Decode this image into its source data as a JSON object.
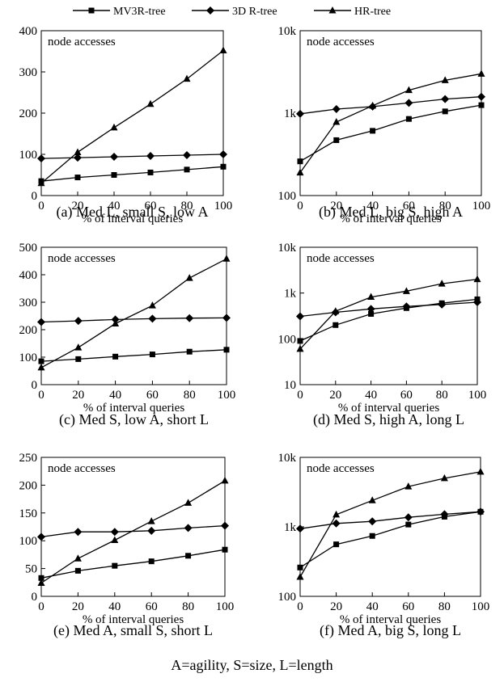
{
  "legend": {
    "series": [
      {
        "name": "MV3R-tree",
        "marker": "square"
      },
      {
        "name": "3D R-tree",
        "marker": "diamond"
      },
      {
        "name": "HR-tree",
        "marker": "triangle"
      }
    ]
  },
  "footer": "A=agility, S=size, L=length",
  "chart_data": [
    {
      "type": "line",
      "caption": "(a) Med L, small S, low A",
      "label": "node accesses",
      "xlabel": "% of interval queries",
      "scale": "linear",
      "x": [
        0,
        20,
        40,
        60,
        80,
        100
      ],
      "xticks": [
        0,
        20,
        40,
        60,
        80,
        100
      ],
      "ylim": [
        0,
        400
      ],
      "yticks": [
        0,
        100,
        200,
        300,
        400
      ],
      "ytick_labels": [
        "0",
        "100",
        "200",
        "300",
        "400"
      ],
      "series": [
        {
          "name": "MV3R-tree",
          "marker": "square",
          "values": [
            35,
            44,
            50,
            56,
            63,
            70
          ]
        },
        {
          "name": "3D R-tree",
          "marker": "diamond",
          "values": [
            90,
            92,
            94,
            96,
            98,
            100
          ]
        },
        {
          "name": "HR-tree",
          "marker": "triangle",
          "values": [
            30,
            105,
            165,
            222,
            283,
            352
          ]
        }
      ]
    },
    {
      "type": "line",
      "caption": "(b) Med L, big S, high A",
      "label": "node accesses",
      "xlabel": "% of interval queries",
      "scale": "log",
      "x": [
        0,
        20,
        40,
        60,
        80,
        100
      ],
      "xticks": [
        0,
        20,
        40,
        60,
        80,
        100
      ],
      "ylim": [
        100,
        10000
      ],
      "yticks": [
        100,
        1000,
        10000
      ],
      "ytick_labels": [
        "100",
        "1k",
        "10k"
      ],
      "series": [
        {
          "name": "MV3R-tree",
          "marker": "square",
          "values": [
            260,
            470,
            610,
            850,
            1050,
            1250
          ]
        },
        {
          "name": "3D R-tree",
          "marker": "diamond",
          "values": [
            980,
            1120,
            1200,
            1330,
            1480,
            1580
          ]
        },
        {
          "name": "HR-tree",
          "marker": "triangle",
          "values": [
            190,
            780,
            1230,
            1900,
            2500,
            3000
          ]
        }
      ]
    },
    {
      "type": "line",
      "caption": "(c) Med S, low A, short L",
      "label": "node accesses",
      "xlabel": "% of interval queries",
      "scale": "linear",
      "x": [
        0,
        20,
        40,
        60,
        80,
        100
      ],
      "xticks": [
        0,
        20,
        40,
        60,
        80,
        100
      ],
      "ylim": [
        0,
        500
      ],
      "yticks": [
        0,
        100,
        200,
        300,
        400,
        500
      ],
      "ytick_labels": [
        "0",
        "100",
        "200",
        "300",
        "400",
        "500"
      ],
      "series": [
        {
          "name": "MV3R-tree",
          "marker": "square",
          "values": [
            85,
            93,
            102,
            110,
            120,
            127
          ]
        },
        {
          "name": "3D R-tree",
          "marker": "diamond",
          "values": [
            228,
            232,
            237,
            240,
            242,
            243
          ]
        },
        {
          "name": "HR-tree",
          "marker": "triangle",
          "values": [
            62,
            135,
            222,
            288,
            388,
            458
          ]
        }
      ]
    },
    {
      "type": "line",
      "caption": "(d) Med S, high A, long L",
      "label": "node accesses",
      "xlabel": "% of interval queries",
      "scale": "log",
      "x": [
        0,
        20,
        40,
        60,
        80,
        100
      ],
      "xticks": [
        0,
        20,
        40,
        60,
        80,
        100
      ],
      "ylim": [
        10,
        10000
      ],
      "yticks": [
        10,
        100,
        1000,
        10000
      ],
      "ytick_labels": [
        "10",
        "100",
        "1k",
        "10k"
      ],
      "series": [
        {
          "name": "MV3R-tree",
          "marker": "square",
          "values": [
            90,
            200,
            350,
            470,
            600,
            730
          ]
        },
        {
          "name": "3D R-tree",
          "marker": "diamond",
          "values": [
            310,
            380,
            450,
            510,
            560,
            630
          ]
        },
        {
          "name": "HR-tree",
          "marker": "triangle",
          "values": [
            60,
            400,
            820,
            1100,
            1600,
            2000
          ]
        }
      ]
    },
    {
      "type": "line",
      "caption": "(e) Med A, small S, short L",
      "label": "node accesses",
      "xlabel": "% of interval queries",
      "scale": "linear",
      "x": [
        0,
        20,
        40,
        60,
        80,
        100
      ],
      "xticks": [
        0,
        20,
        40,
        60,
        80,
        100
      ],
      "ylim": [
        0,
        250
      ],
      "yticks": [
        0,
        50,
        100,
        150,
        200,
        250
      ],
      "ytick_labels": [
        "0",
        "50",
        "100",
        "150",
        "200",
        "250"
      ],
      "series": [
        {
          "name": "MV3R-tree",
          "marker": "square",
          "values": [
            33,
            46,
            55,
            63,
            73,
            84
          ]
        },
        {
          "name": "3D R-tree",
          "marker": "diamond",
          "values": [
            107,
            116,
            116,
            118,
            123,
            127
          ]
        },
        {
          "name": "HR-tree",
          "marker": "triangle",
          "values": [
            24,
            68,
            101,
            135,
            168,
            208
          ]
        }
      ]
    },
    {
      "type": "line",
      "caption": "(f) Med A, big S, long L",
      "label": "node accesses",
      "xlabel": "% of interval queries",
      "scale": "log",
      "x": [
        0,
        20,
        40,
        60,
        80,
        100
      ],
      "xticks": [
        0,
        20,
        40,
        60,
        80,
        100
      ],
      "ylim": [
        100,
        10000
      ],
      "yticks": [
        100,
        1000,
        10000
      ],
      "ytick_labels": [
        "100",
        "1k",
        "10k"
      ],
      "series": [
        {
          "name": "MV3R-tree",
          "marker": "square",
          "values": [
            260,
            560,
            740,
            1080,
            1400,
            1650
          ]
        },
        {
          "name": "3D R-tree",
          "marker": "diamond",
          "values": [
            940,
            1120,
            1200,
            1370,
            1520,
            1650
          ]
        },
        {
          "name": "HR-tree",
          "marker": "triangle",
          "values": [
            190,
            1500,
            2400,
            3800,
            5000,
            6200
          ]
        }
      ]
    }
  ]
}
